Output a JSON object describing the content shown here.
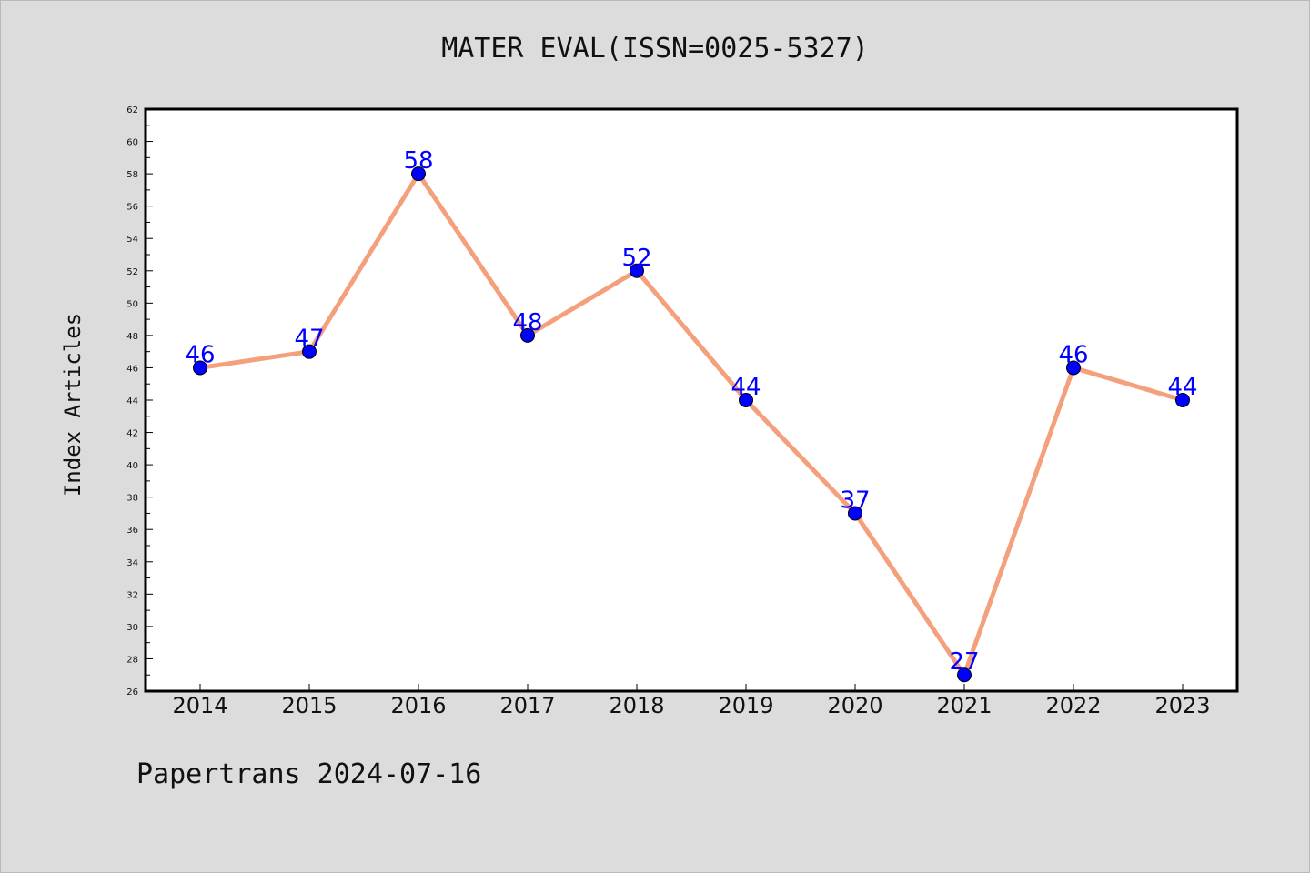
{
  "chart_data": {
    "type": "line",
    "title": "MATER EVAL(ISSN=0025-5327)",
    "xlabel": "",
    "ylabel": "Index Articles",
    "categories": [
      "2014",
      "2015",
      "2016",
      "2017",
      "2018",
      "2019",
      "2020",
      "2021",
      "2022",
      "2023"
    ],
    "series": [
      {
        "values": [
          46,
          47,
          58,
          48,
          52,
          44,
          37,
          27,
          46,
          44
        ],
        "line_color": "#f4a07c",
        "marker_color": "#0000ff"
      }
    ],
    "ylim": [
      26,
      62
    ],
    "yticks": [
      26,
      28,
      30,
      32,
      34,
      36,
      38,
      40,
      42,
      44,
      46,
      48,
      50,
      52,
      54,
      56,
      58,
      60,
      62
    ],
    "data_labels": true,
    "grid": false,
    "legend": false
  },
  "footer": {
    "text": "Papertrans 2024-07-16"
  }
}
